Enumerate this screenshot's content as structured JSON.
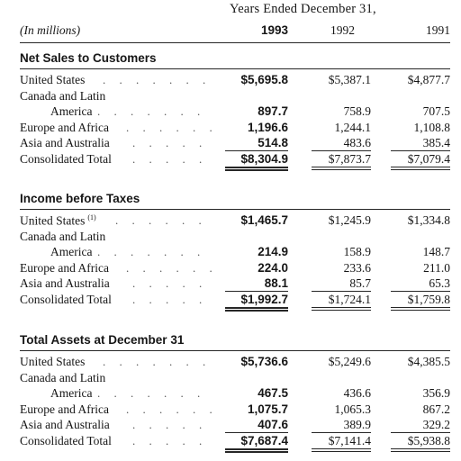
{
  "header": {
    "period": "Years Ended December 31,",
    "units": "(In millions)",
    "years": [
      "1993",
      "1992",
      "1991"
    ]
  },
  "sections": [
    {
      "title": "Net Sales to Customers",
      "rows": [
        {
          "label": "United States",
          "indent": false,
          "leader": true,
          "values": [
            "$5,695.8",
            "$5,387.1",
            "$4,877.7"
          ]
        },
        {
          "label": "Canada and Latin",
          "indent": false,
          "leader": false,
          "values": []
        },
        {
          "label": "America",
          "indent": true,
          "leader": true,
          "values": [
            "897.7",
            "758.9",
            "707.5"
          ]
        },
        {
          "label": "Europe and Africa",
          "indent": false,
          "leader": true,
          "values": [
            "1,196.6",
            "1,244.1",
            "1,108.8"
          ]
        },
        {
          "label": "Asia and Australia",
          "indent": false,
          "leader": true,
          "values": [
            "514.8",
            "483.6",
            "385.4"
          ]
        },
        {
          "label": "Consolidated Total",
          "indent": false,
          "leader": true,
          "values": [
            "$8,304.9",
            "$7,873.7",
            "$7,079.4"
          ]
        }
      ]
    },
    {
      "title": "Income before Taxes",
      "rows": [
        {
          "label": "United States",
          "footnote": "(1)",
          "indent": false,
          "leader": true,
          "values": [
            "$1,465.7",
            "$1,245.9",
            "$1,334.8"
          ]
        },
        {
          "label": "Canada and Latin",
          "indent": false,
          "leader": false,
          "values": []
        },
        {
          "label": "America",
          "indent": true,
          "leader": true,
          "values": [
            "214.9",
            "158.9",
            "148.7"
          ]
        },
        {
          "label": "Europe and Africa",
          "indent": false,
          "leader": true,
          "values": [
            "224.0",
            "233.6",
            "211.0"
          ]
        },
        {
          "label": "Asia and Australia",
          "indent": false,
          "leader": true,
          "values": [
            "88.1",
            "85.7",
            "65.3"
          ]
        },
        {
          "label": "Consolidated Total",
          "indent": false,
          "leader": true,
          "values": [
            "$1,992.7",
            "$1,724.1",
            "$1,759.8"
          ]
        }
      ]
    },
    {
      "title": "Total Assets at December 31",
      "rows": [
        {
          "label": "United States",
          "indent": false,
          "leader": true,
          "values": [
            "$5,736.6",
            "$5,249.6",
            "$4,385.5"
          ]
        },
        {
          "label": "Canada and Latin",
          "indent": false,
          "leader": false,
          "values": []
        },
        {
          "label": "America",
          "indent": true,
          "leader": true,
          "values": [
            "467.5",
            "436.6",
            "356.9"
          ]
        },
        {
          "label": "Europe and Africa",
          "indent": false,
          "leader": true,
          "values": [
            "1,075.7",
            "1,065.3",
            "867.2"
          ]
        },
        {
          "label": "Asia and Australia",
          "indent": false,
          "leader": true,
          "values": [
            "407.6",
            "389.9",
            "329.2"
          ]
        },
        {
          "label": "Consolidated Total",
          "indent": false,
          "leader": true,
          "values": [
            "$7,687.4",
            "$7,141.4",
            "$5,938.8"
          ]
        }
      ]
    }
  ]
}
